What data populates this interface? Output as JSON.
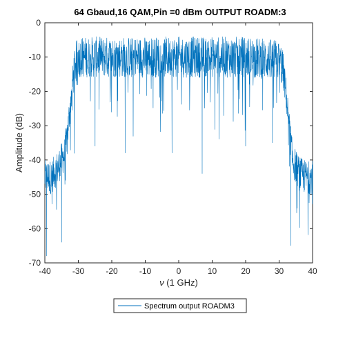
{
  "chart_data": {
    "type": "line",
    "title": "64 Gbaud,16 QAM,Pin =0 dBm OUTPUT ROADM:3",
    "xlabel_symbol": "ν",
    "xlabel_rest": " (1 GHz)",
    "ylabel": "Amplitude (dB)",
    "xlim": [
      -40,
      40
    ],
    "ylim": [
      -70,
      0
    ],
    "xticks": [
      -40,
      -30,
      -20,
      -10,
      0,
      10,
      20,
      30,
      40
    ],
    "yticks": [
      0,
      -10,
      -20,
      -30,
      -40,
      -50,
      -60,
      -70
    ],
    "grid": false,
    "legend_position": "bottom-center",
    "series": [
      {
        "name": "Spectrum output ROADM3",
        "color": "#0072BD",
        "envelope": {
          "x": [
            -40,
            -38,
            -36,
            -34,
            -33,
            -32,
            -31,
            -30,
            -20,
            -10,
            0,
            10,
            20,
            30,
            31,
            32,
            33,
            34,
            36,
            38,
            40
          ],
          "y": [
            -45,
            -45,
            -42,
            -38,
            -30,
            -20,
            -12,
            -10,
            -10,
            -10,
            -10,
            -10,
            -10,
            -11,
            -13,
            -20,
            -30,
            -40,
            -44,
            -45,
            -45
          ]
        },
        "outlier_dips": [
          {
            "x": -39.5,
            "y": -68
          },
          {
            "x": -35,
            "y": -64
          },
          {
            "x": 7,
            "y": -44
          },
          {
            "x": 33.5,
            "y": -65
          },
          {
            "x": -25,
            "y": -36
          },
          {
            "x": -16,
            "y": -38
          },
          {
            "x": -2,
            "y": -38
          },
          {
            "x": 20,
            "y": -36
          },
          {
            "x": 28,
            "y": -35
          }
        ]
      }
    ]
  }
}
